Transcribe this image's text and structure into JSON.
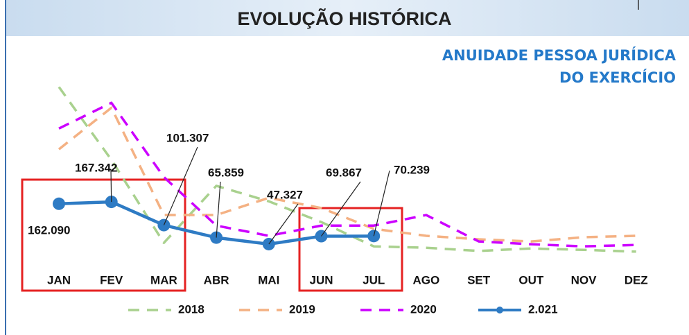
{
  "chart_data": {
    "type": "line",
    "title": "EVOLUÇÃO HISTÓRICA",
    "subtitle": [
      "ANUIDADE PESSOA JURÍDICA",
      "DO EXERCÍCIO"
    ],
    "categories": [
      "JAN",
      "FEV",
      "MAR",
      "ABR",
      "MAI",
      "JUN",
      "JUL",
      "AGO",
      "SET",
      "OUT",
      "NOV",
      "DEZ"
    ],
    "ylim": [
      0,
      550000
    ],
    "series": [
      {
        "name": "2018",
        "color": "#a9d18e",
        "style": "dashed",
        "values": [
          494000,
          287000,
          51000,
          213000,
          169000,
          110000,
          41000,
          37000,
          28000,
          35000,
          31000,
          26000
        ]
      },
      {
        "name": "2019",
        "color": "#f4b183",
        "style": "dashed",
        "values": [
          317000,
          435000,
          130000,
          130000,
          179000,
          150000,
          91000,
          71000,
          61000,
          55000,
          67000,
          71000
        ]
      },
      {
        "name": "2020",
        "color": "#cc00ff",
        "style": "dashed",
        "values": [
          376000,
          449000,
          238000,
          100000,
          71000,
          100000,
          100000,
          130000,
          55000,
          47000,
          41000,
          45000
        ]
      },
      {
        "name": "2.021",
        "color": "#2e7bc4",
        "style": "solid-markers",
        "values": [
          162090,
          167342,
          101307,
          65859,
          47327,
          69867,
          70239,
          null,
          null,
          null,
          null,
          null
        ],
        "value_labels": [
          "162.090",
          "167.342",
          "101.307",
          "65.859",
          "47.327",
          "69.867",
          "70.239",
          null,
          null,
          null,
          null,
          null
        ]
      }
    ]
  }
}
